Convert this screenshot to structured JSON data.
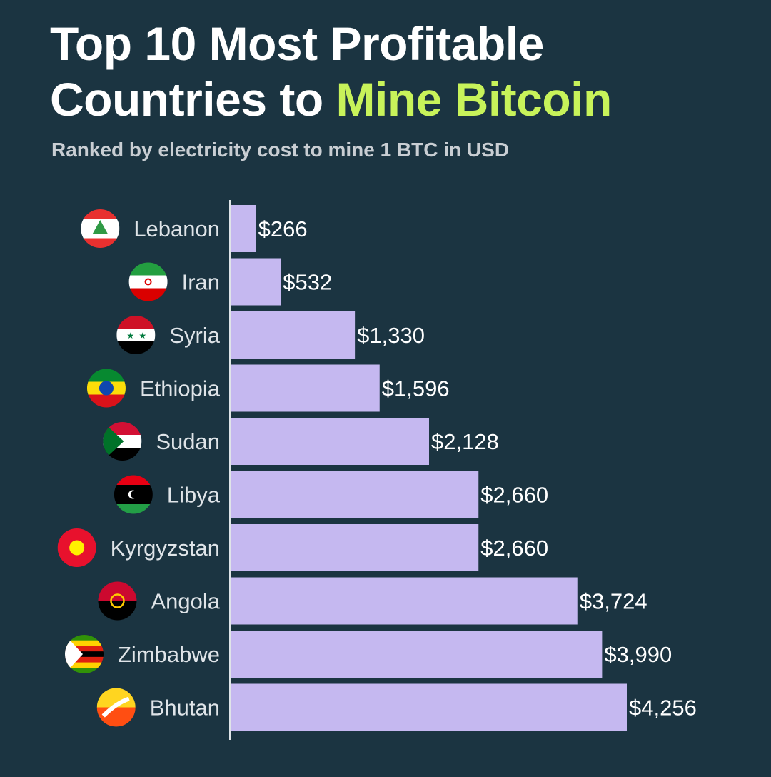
{
  "header": {
    "title_line1": "Top 10 Most Profitable",
    "title_line2_prefix": "Countries to ",
    "title_line2_highlight": "Mine Bitcoin",
    "subtitle": "Ranked by electricity cost to mine 1 BTC in USD"
  },
  "colors": {
    "background": "#1b3441",
    "bar": "#c5b8f0",
    "highlight": "#c8f35a"
  },
  "chart_data": {
    "type": "bar",
    "orientation": "horizontal",
    "title": "Top 10 Most Profitable Countries to Mine Bitcoin",
    "subtitle": "Ranked by electricity cost to mine 1 BTC in USD",
    "categories": [
      "Lebanon",
      "Iran",
      "Syria",
      "Ethiopia",
      "Sudan",
      "Libya",
      "Kyrgyzstan",
      "Angola",
      "Zimbabwe",
      "Bhutan"
    ],
    "values": [
      266,
      532,
      1330,
      1596,
      2128,
      2660,
      2660,
      3724,
      3990,
      4256
    ],
    "value_labels": [
      "$266",
      "$532",
      "$1,330",
      "$1,596",
      "$2,128",
      "$2,660",
      "$2,660",
      "$3,724",
      "$3,990",
      "$4,256"
    ],
    "flag_icons": [
      "lebanon-flag-icon",
      "iran-flag-icon",
      "syria-flag-icon",
      "ethiopia-flag-icon",
      "sudan-flag-icon",
      "libya-flag-icon",
      "kyrgyzstan-flag-icon",
      "angola-flag-icon",
      "zimbabwe-flag-icon",
      "bhutan-flag-icon"
    ],
    "xlim": [
      0,
      4256
    ],
    "grid": false,
    "legend": "none"
  }
}
